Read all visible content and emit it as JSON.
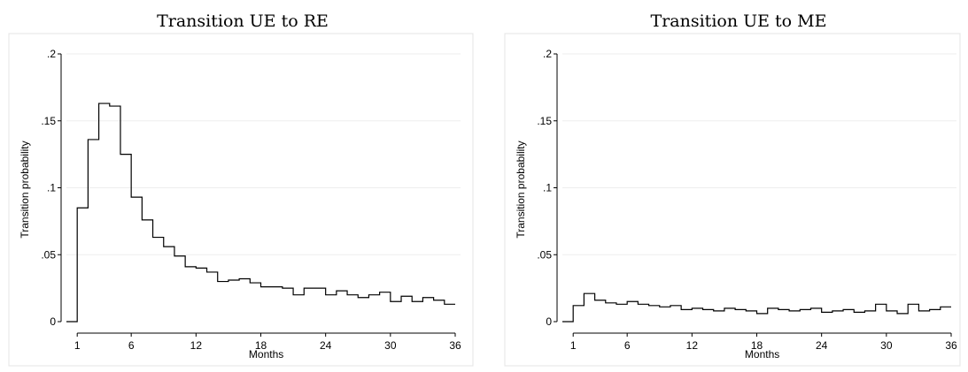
{
  "chart_data": [
    {
      "type": "line",
      "style": "step",
      "title": "Transition UE to RE",
      "xlabel": "Months",
      "ylabel": "Transition probability",
      "xlim": [
        0,
        36
      ],
      "ylim": [
        0,
        0.2
      ],
      "xticks": [
        1,
        6,
        12,
        18,
        24,
        30,
        36
      ],
      "yticks": [
        0,
        0.05,
        0.1,
        0.15,
        0.2
      ],
      "ytick_labels": [
        "0",
        ".05",
        ".1",
        ".15",
        ".2"
      ],
      "grid": true,
      "x": [
        1,
        2,
        3,
        4,
        5,
        6,
        7,
        8,
        9,
        10,
        11,
        12,
        13,
        14,
        15,
        16,
        17,
        18,
        19,
        20,
        21,
        22,
        23,
        24,
        25,
        26,
        27,
        28,
        29,
        30,
        31,
        32,
        33,
        34,
        35,
        36
      ],
      "values": [
        0.085,
        0.136,
        0.163,
        0.161,
        0.125,
        0.093,
        0.076,
        0.063,
        0.056,
        0.049,
        0.041,
        0.04,
        0.037,
        0.03,
        0.031,
        0.032,
        0.029,
        0.026,
        0.026,
        0.025,
        0.02,
        0.025,
        0.025,
        0.02,
        0.023,
        0.02,
        0.018,
        0.02,
        0.022,
        0.015,
        0.019,
        0.015,
        0.018,
        0.016,
        0.013,
        0.013
      ],
      "start": 0
    },
    {
      "type": "line",
      "style": "step",
      "title": "Transition UE to ME",
      "xlabel": "Months",
      "ylabel": "Transition probability",
      "xlim": [
        0,
        36
      ],
      "ylim": [
        0,
        0.2
      ],
      "xticks": [
        1,
        6,
        12,
        18,
        24,
        30,
        36
      ],
      "yticks": [
        0,
        0.05,
        0.1,
        0.15,
        0.2
      ],
      "ytick_labels": [
        "0",
        ".05",
        ".1",
        ".15",
        ".2"
      ],
      "grid": true,
      "x": [
        1,
        2,
        3,
        4,
        5,
        6,
        7,
        8,
        9,
        10,
        11,
        12,
        13,
        14,
        15,
        16,
        17,
        18,
        19,
        20,
        21,
        22,
        23,
        24,
        25,
        26,
        27,
        28,
        29,
        30,
        31,
        32,
        33,
        34,
        35,
        36
      ],
      "values": [
        0.012,
        0.021,
        0.016,
        0.014,
        0.013,
        0.015,
        0.013,
        0.012,
        0.011,
        0.012,
        0.009,
        0.01,
        0.009,
        0.008,
        0.01,
        0.009,
        0.008,
        0.006,
        0.01,
        0.009,
        0.008,
        0.009,
        0.01,
        0.007,
        0.008,
        0.009,
        0.007,
        0.008,
        0.013,
        0.008,
        0.006,
        0.013,
        0.008,
        0.009,
        0.011,
        0.011
      ],
      "start": 0
    }
  ]
}
